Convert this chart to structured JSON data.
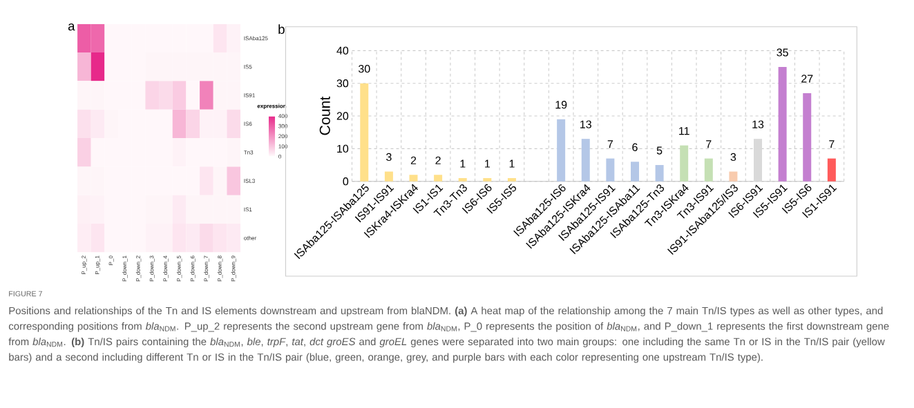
{
  "chart_data": [
    {
      "type": "heatmap",
      "title": "a",
      "clabel": "expression",
      "categories": [
        "P_up_2",
        "P_up_1",
        "P_0",
        "P_down_1",
        "P_down_2",
        "P_down_3",
        "P_down_4",
        "P_down_5",
        "P_down_6",
        "P_down_7",
        "P_down_8",
        "P_down_9"
      ],
      "y_categories": [
        "ISAba125",
        "IS5",
        "IS91",
        "IS6",
        "Tn3",
        "ISL3",
        "IS1",
        "other"
      ],
      "cells": [
        [
          300,
          280,
          5,
          5,
          5,
          5,
          5,
          5,
          5,
          5,
          40,
          15
        ],
        [
          130,
          400,
          5,
          5,
          5,
          10,
          10,
          10,
          10,
          10,
          10,
          10
        ],
        [
          10,
          10,
          5,
          5,
          5,
          70,
          60,
          90,
          5,
          230,
          10,
          10
        ],
        [
          50,
          30,
          10,
          5,
          5,
          5,
          5,
          130,
          70,
          15,
          15,
          60
        ],
        [
          80,
          5,
          5,
          5,
          5,
          5,
          5,
          15,
          5,
          5,
          5,
          10
        ],
        [
          10,
          10,
          5,
          5,
          5,
          5,
          5,
          5,
          5,
          40,
          10,
          100
        ],
        [
          20,
          15,
          5,
          5,
          5,
          10,
          10,
          30,
          10,
          10,
          10,
          10
        ],
        [
          25,
          40,
          5,
          5,
          5,
          15,
          15,
          40,
          30,
          60,
          40,
          30
        ]
      ],
      "clim": [
        0,
        400
      ],
      "cticks": [
        0,
        100,
        200,
        300,
        400
      ]
    },
    {
      "type": "bar",
      "title": "b",
      "ylabel": "Count",
      "categories": [
        "ISAba125-ISAba125",
        "IS91-IS91",
        "ISKra4-ISKra4",
        "IS1-IS1",
        "Tn3-Tn3",
        "IS6-IS6",
        "IS5-IS5",
        null,
        "ISAba125-IS6",
        "ISAba125-ISKra4",
        "ISAba125-IS91",
        "ISAba125-ISAba11",
        "ISAba125-Tn3",
        "Tn3-ISKra4",
        "Tn3-IS91",
        "IS91-ISAba125/IS3",
        "IS6-IS91",
        "IS5-IS91",
        "IS5-IS6",
        "IS1-IS91"
      ],
      "values": [
        30,
        3,
        2,
        2,
        1,
        1,
        1,
        null,
        19,
        13,
        7,
        6,
        5,
        11,
        7,
        3,
        13,
        35,
        27,
        7
      ],
      "colors": [
        "#ffe08a",
        "#ffe08a",
        "#ffe08a",
        "#ffe08a",
        "#ffe08a",
        "#ffe08a",
        "#ffe08a",
        null,
        "#b4c7e7",
        "#b4c7e7",
        "#b4c7e7",
        "#b4c7e7",
        "#b4c7e7",
        "#c5e0b4",
        "#c5e0b4",
        "#f8cbad",
        "#d9d9d9",
        "#c47fd0",
        "#c47fd0",
        "#ff5b5b"
      ],
      "ylim": [
        0,
        40
      ],
      "yticks": [
        0,
        10,
        20,
        30,
        40
      ],
      "grid": true,
      "data_labels": true,
      "annotations": [
        "FIGURE 7",
        "Positions and relationships of the Tn and IS elements downstream and upstream from blaNDM. **(a)** A heat map of the relationship among the 7 main Tn/IS types as well as other types, and corresponding positions from *bla*$_{NDM}$. P_up_2 represents the second upstream gene from *bla*$_{NDM}$, P_0 represents the position of *bla*$_{NDM}$, and P_down_1 represents the first downstream gene from *bla*$_{NDM}$. **(b)** Tn/IS pairs containing the *bla*$_{NDM}$, *ble*, *trpF*, *tat*, *dct groES* and *groEL* genes were separated into two main groups: one including the same Tn or IS in the Tn/IS pair (yellow bars) and a second including different Tn or IS in the Tn/IS pair (blue, green, orange, grey, and purple bars with each color representing one upstream Tn/IS type)."
      ]
    }
  ]
}
